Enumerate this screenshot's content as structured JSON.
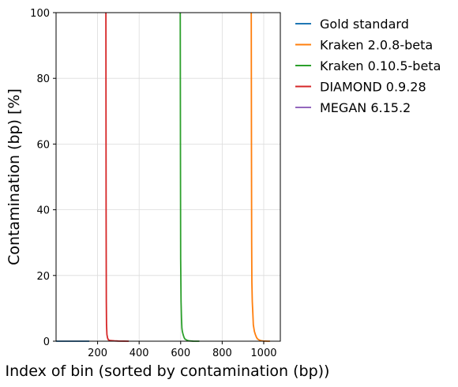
{
  "chart_data": {
    "type": "line",
    "title": "",
    "xlabel": "Index of bin (sorted by contamination (bp))",
    "ylabel": "Contamination (bp) [%]",
    "xlim": [
      0,
      1080
    ],
    "ylim": [
      0,
      100
    ],
    "xticks": [
      200,
      400,
      600,
      800,
      1000
    ],
    "yticks": [
      0,
      20,
      40,
      60,
      80,
      100
    ],
    "grid": true,
    "legend_position": "outside-top-right",
    "series": [
      {
        "name": "Gold standard",
        "color": "#1f77b4",
        "points": [
          [
            0,
            0
          ],
          [
            20,
            0
          ],
          [
            60,
            0
          ],
          [
            100,
            0
          ],
          [
            160,
            0
          ]
        ]
      },
      {
        "name": "Kraken 2.0.8-beta",
        "color": "#ff7f0e",
        "points": [
          [
            940,
            100
          ],
          [
            941,
            60
          ],
          [
            942,
            30
          ],
          [
            943,
            18
          ],
          [
            945,
            12
          ],
          [
            948,
            8
          ],
          [
            950,
            5
          ],
          [
            955,
            3
          ],
          [
            960,
            2
          ],
          [
            965,
            1.2
          ],
          [
            970,
            0.7
          ],
          [
            980,
            0.3
          ],
          [
            990,
            0.1
          ],
          [
            1000,
            0.05
          ],
          [
            1020,
            0
          ],
          [
            1030,
            0
          ]
        ]
      },
      {
        "name": "Kraken 0.10.5-beta",
        "color": "#2ca02c",
        "points": [
          [
            598,
            100
          ],
          [
            599,
            60
          ],
          [
            600,
            25
          ],
          [
            602,
            12
          ],
          [
            604,
            7
          ],
          [
            606,
            4
          ],
          [
            608,
            3
          ],
          [
            612,
            2
          ],
          [
            616,
            1.2
          ],
          [
            620,
            0.7
          ],
          [
            630,
            0.3
          ],
          [
            640,
            0.1
          ],
          [
            660,
            0.02
          ],
          [
            690,
            0
          ]
        ]
      },
      {
        "name": "DIAMOND 0.9.28",
        "color": "#d62728",
        "points": [
          [
            240,
            100
          ],
          [
            241,
            40
          ],
          [
            242,
            12
          ],
          [
            243,
            5
          ],
          [
            245,
            2
          ],
          [
            248,
            1
          ],
          [
            252,
            0.4
          ],
          [
            260,
            0.2
          ],
          [
            280,
            0.1
          ],
          [
            300,
            0.05
          ],
          [
            350,
            0
          ]
        ]
      },
      {
        "name": "MEGAN 6.15.2",
        "color": "#9467bd",
        "points": []
      }
    ]
  }
}
